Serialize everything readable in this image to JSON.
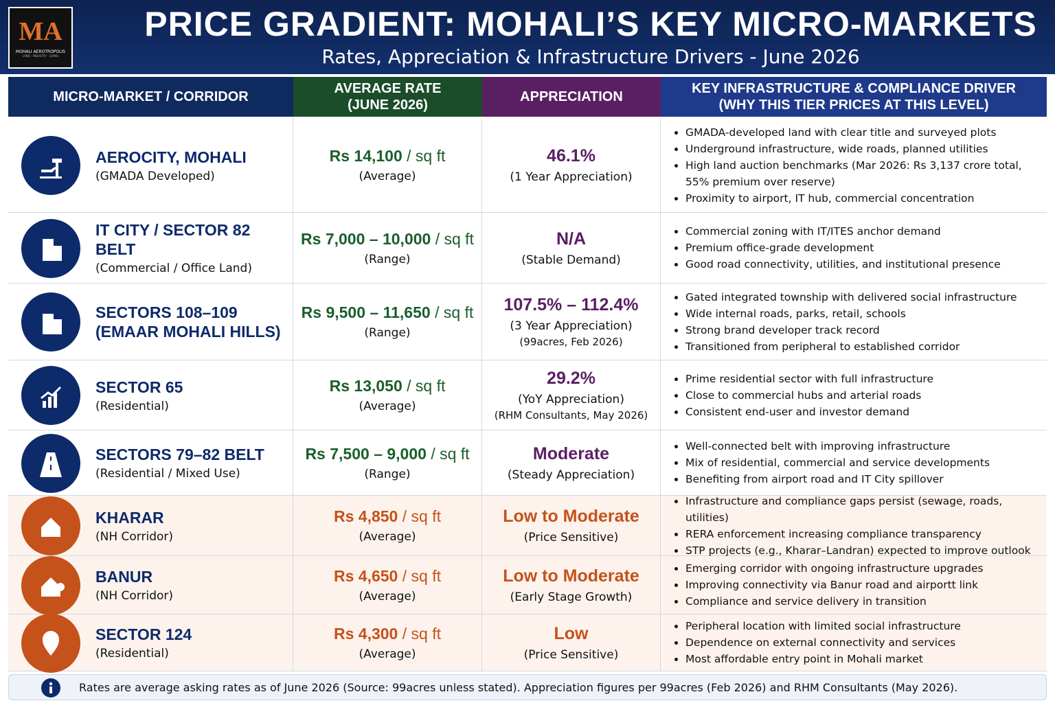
{
  "header": {
    "logo": {
      "mark": "MA",
      "name": "MOHALI AEROTROPOLIS",
      "tagline": "LAND · INDUSTRY · LIVING"
    },
    "title": "PRICE GRADIENT: MOHALI’S KEY MICRO-MARKETS",
    "subtitle": "Rates, Appreciation & Infrastructure Drivers - June 2026"
  },
  "table": {
    "columns": [
      "MICRO-MARKET / CORRIDOR",
      "AVERAGE RATE\n(JUNE 2026)",
      "APPRECIATION",
      "KEY INFRASTRUCTURE & COMPLIANCE DRIVER\n(WHY THIS TIER PRICES AT THIS LEVEL)"
    ],
    "rows": [
      {
        "name": "AEROCITY, MOHALI",
        "sub": "(GMADA Developed)",
        "rate": "Rs 14,100",
        "unit": "/ sq ft",
        "rate_note": "(Average)",
        "appreciation": "46.1%",
        "appreciation_note": "(1 Year Appreciation)",
        "drivers": [
          "GMADA-developed land with clear title and surveyed plots",
          "Underground infrastructure, wide roads, planned utilities",
          "High land auction benchmarks (Mar 2026: Rs 3,137 crore total, 55% premium over reserve)",
          "Proximity to airport, IT hub, commercial concentration"
        ],
        "icon_color": "#0d2a6b",
        "rate_color": "#1b5e2a",
        "appreciation_color": "#5a1f63",
        "background": "#ffffff"
      },
      {
        "name": "IT CITY / SECTOR 82 BELT",
        "sub": "(Commercial / Office Land)",
        "rate": "Rs 7,000 – 10,000",
        "unit": "/ sq ft",
        "rate_note": "(Range)",
        "appreciation": "N/A",
        "appreciation_note": "(Stable Demand)",
        "drivers": [
          "Commercial zoning with IT/ITES anchor demand",
          "Premium office-grade development",
          "Good road connectivity, utilities, and institutional presence"
        ],
        "icon_color": "#0d2a6b",
        "rate_color": "#1b5e2a",
        "appreciation_color": "#5a1f63",
        "background": "#ffffff"
      },
      {
        "name": "SECTORS 108–109 (EMAAR MOHALI HILLS)",
        "sub": "",
        "rate": "Rs 9,500 – 11,650",
        "unit": "/ sq ft",
        "rate_note": "(Range)",
        "appreciation": "107.5% – 112.4%",
        "appreciation_note": "(3 Year Appreciation)",
        "source": "(99acres, Feb 2026)",
        "drivers": [
          "Gated integrated township with delivered social infrastructure",
          "Wide internal roads, parks, retail, schools",
          "Strong brand developer track record",
          "Transitioned from peripheral to established corridor"
        ],
        "icon_color": "#0d2a6b",
        "rate_color": "#1b5e2a",
        "appreciation_color": "#5a1f63",
        "background": "#ffffff"
      },
      {
        "name": "SECTOR 65",
        "sub": "(Residential)",
        "rate": "Rs 13,050",
        "unit": "/ sq ft",
        "rate_note": "(Average)",
        "appreciation": "29.2%",
        "appreciation_note": "(YoY Appreciation)",
        "source": "(RHM Consultants, May 2026)",
        "drivers": [
          "Prime residential sector with full infrastructure",
          "Close to commercial hubs and arterial roads",
          "Consistent end-user and investor demand"
        ],
        "icon_color": "#0d2a6b",
        "rate_color": "#1b5e2a",
        "appreciation_color": "#5a1f63",
        "background": "#ffffff"
      },
      {
        "name": "SECTORS 79–82 BELT",
        "sub": "(Residential / Mixed Use)",
        "rate": "Rs 7,500 – 9,000",
        "unit": "/ sq ft",
        "rate_note": "(Range)",
        "appreciation": "Moderate",
        "appreciation_note": "(Steady Appreciation)",
        "drivers": [
          "Well-connected belt with improving infrastructure",
          "Mix of residential, commercial and service developments",
          "Benefiting from airport road and IT City spillover"
        ],
        "icon_color": "#0d2a6b",
        "rate_color": "#1b5e2a",
        "appreciation_color": "#5a1f63",
        "background": "#ffffff"
      },
      {
        "name": "KHARAR",
        "sub": "(NH Corridor)",
        "rate": "Rs 4,850",
        "unit": "/ sq ft",
        "rate_note": "(Average)",
        "appreciation": "Low to Moderate",
        "appreciation_note": "(Price Sensitive)",
        "drivers": [
          "Infrastructure and compliance gaps persist (sewage, roads, utilities)",
          "RERA enforcement increasing compliance transparency",
          "STP projects (e.g., Kharar–Landran) expected to improve outlook"
        ],
        "icon_color": "#c4521a",
        "rate_color": "#c4521a",
        "appreciation_color": "#c4521a",
        "background": "#fdf3ec"
      },
      {
        "name": "BANUR",
        "sub": "(NH Corridor)",
        "rate": "Rs 4,650",
        "unit": "/ sq ft",
        "rate_note": "(Average)",
        "appreciation": "Low to Moderate",
        "appreciation_note": "(Early Stage Growth)",
        "drivers": [
          "Emerging corridor with ongoing infrastructure upgrades",
          "Improving connectivity via Banur road and airportt link",
          "Compliance and service delivery in transition"
        ],
        "icon_color": "#c4521a",
        "rate_color": "#c4521a",
        "appreciation_color": "#c4521a",
        "background": "#fdf3ec"
      },
      {
        "name": "SECTOR 124",
        "sub": "(Residential)",
        "rate": "Rs 4,300",
        "unit": "/ sq ft",
        "rate_note": "(Average)",
        "appreciation": "Low",
        "appreciation_note": "(Price Sensitive)",
        "drivers": [
          "Peripheral location with limited social infrastructure",
          "Dependence on external connectivity and services",
          "Most affordable entry point in Mohali market"
        ],
        "icon_color": "#c4521a",
        "rate_color": "#c4521a",
        "appreciation_color": "#c4521a",
        "background": "#fdf3ec"
      }
    ]
  },
  "footer": {
    "note": "Rates are average asking rates as of June 2026 (Source: 99acres unless stated). Appreciation figures per 99acres (Feb 2026) and RHM Consultants (May 2026)."
  }
}
